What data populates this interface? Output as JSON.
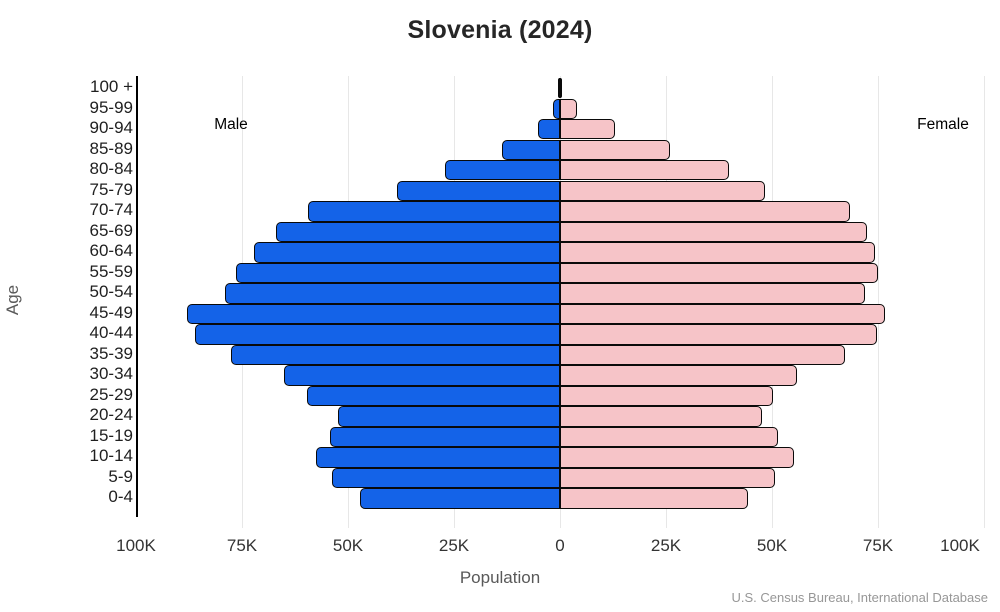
{
  "title": "Slovenia (2024)",
  "annotations": {
    "male": "Male",
    "female": "Female"
  },
  "axes": {
    "y_label": "Age",
    "x_label": "Population"
  },
  "source": "U.S. Census Bureau, International Database",
  "colors": {
    "male_bar": "#1463e8",
    "female_bar": "#f6c4c8",
    "bar_border": "#0a0a0a",
    "gridline": "#e7e7e7",
    "axis_line": "#000000"
  },
  "chart_data": {
    "type": "bar",
    "subtype": "population-pyramid",
    "title": "Slovenia (2024)",
    "xlabel": "Population",
    "ylabel": "Age",
    "x_axis": {
      "tick_labels": [
        "100K",
        "75K",
        "50K",
        "25K",
        "0",
        "25K",
        "50K",
        "75K",
        "100K"
      ],
      "tick_values": [
        -100000,
        -75000,
        -50000,
        -25000,
        0,
        25000,
        50000,
        75000,
        100000
      ],
      "max_abs": 100000,
      "grid": true
    },
    "categories": [
      "100 +",
      "95-99",
      "90-94",
      "85-89",
      "80-84",
      "75-79",
      "70-74",
      "65-69",
      "60-64",
      "55-59",
      "50-54",
      "45-49",
      "40-44",
      "35-39",
      "30-34",
      "25-29",
      "20-24",
      "15-19",
      "10-14",
      "5-9",
      "0-4"
    ],
    "series": [
      {
        "name": "Male",
        "side": "left",
        "color": "#1463e8",
        "values": [
          300,
          1600,
          5200,
          13700,
          27100,
          38400,
          59400,
          67000,
          72200,
          76400,
          79000,
          88000,
          86100,
          77600,
          65100,
          59700,
          52400,
          54200,
          57500,
          53800,
          47200
        ]
      },
      {
        "name": "Female",
        "side": "right",
        "color": "#f6c4c8",
        "values": [
          500,
          4000,
          13000,
          25900,
          39900,
          48400,
          68400,
          72400,
          74300,
          75000,
          71900,
          76700,
          74800,
          67200,
          55900,
          50200,
          47600,
          51400,
          55200,
          50700,
          44300
        ]
      }
    ],
    "legend": "none"
  }
}
